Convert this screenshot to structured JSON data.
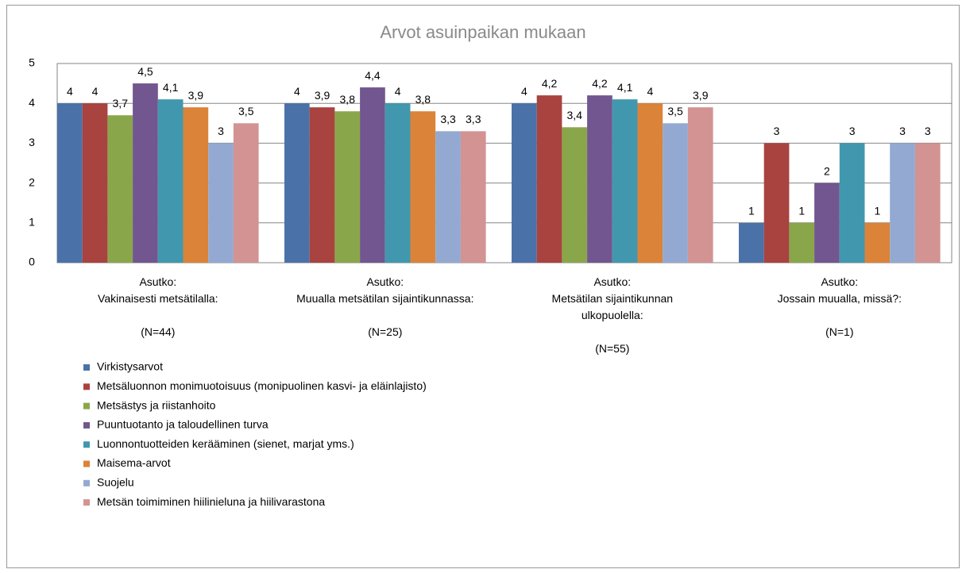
{
  "chart_data": {
    "type": "bar",
    "title": "Arvot asuinpaikan mukaan",
    "categories": [
      "Asutko:\nVakinaisesti metsätilalla:\n\n(N=44)",
      "Asutko:\nMuualla metsätilan sijaintikunnassa:\n\n(N=25)",
      "Asutko:\nMetsätilan sijaintikunnan\nulkopuolella:\n\n(N=55)",
      "Asutko:\nJossain muualla, missä?:\n\n(N=1)"
    ],
    "series": [
      {
        "name": "Virkistysarvot",
        "color": "#4a72a8",
        "values": [
          4,
          4,
          4,
          1
        ],
        "value_labels": [
          "4",
          "4",
          "4",
          "1"
        ]
      },
      {
        "name": "Metsäluonnon monimuotoisuus (monipuolinen kasvi- ja eläinlajisto)",
        "color": "#a84340",
        "values": [
          4,
          3.9,
          4.2,
          3
        ],
        "value_labels": [
          "4",
          "3,9",
          "4,2",
          "3"
        ]
      },
      {
        "name": "Metsästys ja riistanhoito",
        "color": "#8aa64a",
        "values": [
          3.7,
          3.8,
          3.4,
          1
        ],
        "value_labels": [
          "3,7",
          "3,8",
          "3,4",
          "1"
        ]
      },
      {
        "name": "Puuntuotanto ja taloudellinen turva",
        "color": "#71568f",
        "values": [
          4.5,
          4.4,
          4.2,
          2
        ],
        "value_labels": [
          "4,5",
          "4,4",
          "4,2",
          "2"
        ]
      },
      {
        "name": "Luonnontuotteiden kerääminen (sienet, marjat yms.)",
        "color": "#4198ae",
        "values": [
          4.1,
          4,
          4.1,
          3
        ],
        "value_labels": [
          "4,1",
          "4",
          "4,1",
          "3"
        ]
      },
      {
        "name": "Maisema-arvot",
        "color": "#db8339",
        "values": [
          3.9,
          3.8,
          4,
          1
        ],
        "value_labels": [
          "3,9",
          "3,8",
          "4",
          "1"
        ]
      },
      {
        "name": "Suojelu",
        "color": "#93a9d1",
        "values": [
          3,
          3.3,
          3.5,
          3
        ],
        "value_labels": [
          "3",
          "3,3",
          "3,5",
          "3"
        ]
      },
      {
        "name": "Metsän toimiminen hiilinieluna ja hiilivarastona",
        "color": "#d29392",
        "values": [
          3.5,
          3.3,
          3.9,
          3
        ],
        "value_labels": [
          "3,5",
          "3,3",
          "3,9",
          "3"
        ]
      }
    ],
    "ylim": [
      0,
      5
    ],
    "yticks": [
      0,
      1,
      2,
      3,
      4,
      5
    ],
    "grid": true
  }
}
